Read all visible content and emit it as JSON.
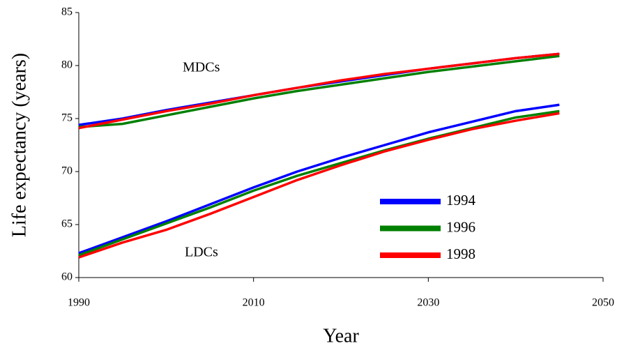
{
  "chart_data": {
    "type": "line",
    "x_label": "Year",
    "y_label": "Life expectancy (years)",
    "x": [
      1990,
      1995,
      2000,
      2005,
      2010,
      2015,
      2020,
      2025,
      2030,
      2035,
      2040,
      2045
    ],
    "groups": [
      "MDCs",
      "LDCs"
    ],
    "series": [
      {
        "name": "1994",
        "color": "#0000ff",
        "values": [
          [
            74.4,
            75.0,
            75.8,
            76.5,
            77.2,
            77.9,
            78.5,
            79.1,
            79.7,
            80.2,
            80.7,
            81.1
          ],
          [
            62.3,
            63.8,
            65.3,
            66.9,
            68.5,
            70.0,
            71.3,
            72.5,
            73.7,
            74.7,
            75.7,
            76.3
          ]
        ]
      },
      {
        "name": "1996",
        "color": "#008000",
        "values": [
          [
            74.2,
            74.5,
            75.3,
            76.1,
            76.9,
            77.6,
            78.2,
            78.8,
            79.4,
            79.9,
            80.4,
            80.9
          ],
          [
            62.1,
            63.6,
            65.1,
            66.6,
            68.2,
            69.6,
            70.8,
            72.0,
            73.1,
            74.1,
            75.1,
            75.7
          ]
        ]
      },
      {
        "name": "1998",
        "color": "#ff0000",
        "values": [
          [
            74.1,
            74.9,
            75.7,
            76.4,
            77.2,
            77.9,
            78.6,
            79.2,
            79.7,
            80.2,
            80.7,
            81.1
          ],
          [
            61.9,
            63.3,
            64.5,
            66.0,
            67.6,
            69.2,
            70.6,
            71.9,
            73.0,
            74.0,
            74.8,
            75.5
          ]
        ]
      }
    ],
    "xlim": [
      1990,
      2050
    ],
    "ylim": [
      60,
      85
    ],
    "xticks": [
      1990,
      2010,
      2030,
      2050
    ],
    "yticks": [
      60,
      65,
      70,
      75,
      80,
      85
    ],
    "grid": false
  }
}
